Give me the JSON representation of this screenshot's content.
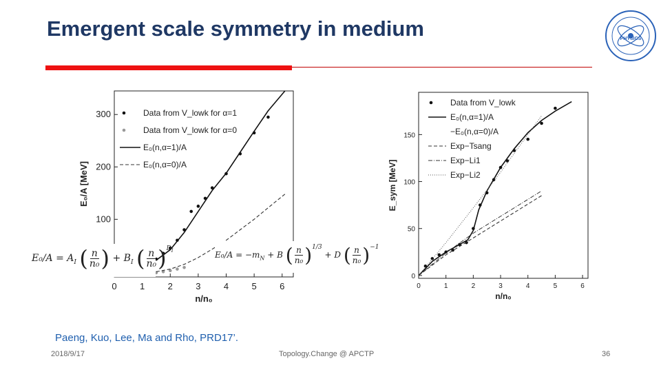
{
  "slide": {
    "title": "Emergent scale symmetry in medium",
    "citation": "Paeng, Kuo, Lee, Ma and Rho, PRD17’.",
    "footer_date": "2018/9/17",
    "footer_center": "Topology.Change @ APCTP",
    "footer_page": "36",
    "accent_red": "#ee1111",
    "title_color": "#1f3864",
    "logo_text": "PHYSICS"
  },
  "formulas": {
    "left": {
      "lhs": "E₀/A = A",
      "sub1": "I",
      "n": "n",
      "n0": "n₀",
      "plus_b": "+ B",
      "sub2": "I",
      "exp": "D",
      "expsub": "I"
    },
    "right": {
      "lhs": "E₀/A = −m",
      "subN": "N",
      "plus_b": "+ B",
      "exp13": "1/3",
      "plus_d": "+ D",
      "expm1": "−1"
    }
  },
  "chart_data": [
    {
      "type": "scatter",
      "xlabel": "n/n₀",
      "ylabel": "E₀/A [MeV]",
      "xlim": [
        0,
        6.4
      ],
      "ylim": [
        -10,
        345
      ],
      "xticks": [
        0,
        1,
        2,
        3,
        4,
        5,
        6
      ],
      "yticks": [
        100,
        200,
        300
      ],
      "legend_position": "top-left",
      "legend": [
        "Data from V_lowk for α=1",
        "Data from V_lowk for α=0",
        "E₀(n,α=1)/A",
        "E₀(n,α=0)/A"
      ],
      "series": [
        {
          "name": "Data from V_lowk for α=1",
          "style": "points-dark",
          "x": [
            1.5,
            1.75,
            2.0,
            2.25,
            2.5,
            2.75,
            3.0,
            3.25,
            3.5,
            4.0,
            4.5,
            5.0,
            5.5
          ],
          "y": [
            24,
            35,
            45,
            60,
            80,
            115,
            125,
            140,
            160,
            187,
            225,
            265,
            295
          ]
        },
        {
          "name": "E₀(n,α=1)/A",
          "style": "solid",
          "x": [
            1.5,
            2.0,
            2.5,
            3.0,
            3.5,
            4.0,
            4.5,
            5.0,
            5.5,
            6.1
          ],
          "y": [
            22,
            42,
            75,
            115,
            155,
            188,
            228,
            268,
            307,
            345
          ]
        },
        {
          "name": "Data from V_lowk for α=0",
          "style": "points-grey",
          "x": [
            1.5,
            1.75,
            2.0,
            2.25,
            2.5
          ],
          "y": [
            -2,
            0,
            2,
            5,
            8
          ]
        },
        {
          "name": "E₀(n,α=0)/A",
          "style": "dashed",
          "x": [
            1.5,
            2.0,
            2.5,
            3.0,
            3.5,
            4.0,
            4.5,
            5.0,
            5.5,
            6.1
          ],
          "y": [
            0,
            5,
            14,
            27,
            43,
            60,
            80,
            100,
            122,
            148
          ]
        }
      ]
    },
    {
      "type": "scatter",
      "xlabel": "n/n₀",
      "ylabel": "E_sym [MeV]",
      "xlim": [
        0,
        6.2
      ],
      "ylim": [
        -3,
        195
      ],
      "xticks": [
        0,
        1,
        2,
        3,
        4,
        5,
        6
      ],
      "yticks": [
        0,
        50,
        100,
        150
      ],
      "legend_position": "top-left",
      "legend": [
        "Data from V_lowk",
        "E₀(n,α=1)/A",
        "−E₀(n,α=0)/A",
        "Exp−Tsang",
        "Exp−Li1",
        "Exp−Li2"
      ],
      "series": [
        {
          "name": "Data from V_lowk",
          "style": "points-dark",
          "x": [
            0.25,
            0.5,
            0.75,
            1.0,
            1.25,
            1.5,
            1.75,
            2.0,
            2.25,
            2.5,
            2.75,
            3.0,
            3.25,
            3.5,
            4.0,
            4.5,
            5.0
          ],
          "y": [
            10,
            18,
            22,
            25,
            27,
            33,
            35,
            50,
            75,
            88,
            102,
            115,
            122,
            133,
            145,
            162,
            178
          ]
        },
        {
          "name": "E₀(n,α=1)/A",
          "style": "solid",
          "x": [
            0.0,
            0.5,
            1.0,
            1.5,
            1.8,
            2.0,
            2.2,
            2.5,
            3.0,
            3.5,
            4.0,
            4.5,
            5.0,
            5.6
          ],
          "y": [
            0,
            15,
            25,
            33,
            38,
            48,
            70,
            90,
            115,
            135,
            152,
            165,
            175,
            185
          ]
        },
        {
          "name": "Exp−Tsang",
          "style": "dashed",
          "x": [
            0.0,
            1.0,
            2.0,
            3.0,
            4.5
          ],
          "y": [
            0,
            22,
            40,
            58,
            85
          ]
        },
        {
          "name": "Exp−Li1",
          "style": "dashdot",
          "x": [
            0.0,
            1.0,
            2.0,
            3.0,
            4.5
          ],
          "y": [
            0,
            24,
            45,
            63,
            90
          ]
        },
        {
          "name": "Exp−Li2",
          "style": "dotted",
          "x": [
            0.0,
            1.0,
            2.0,
            3.0,
            4.5
          ],
          "y": [
            0,
            35,
            72,
            110,
            170
          ]
        }
      ]
    }
  ]
}
